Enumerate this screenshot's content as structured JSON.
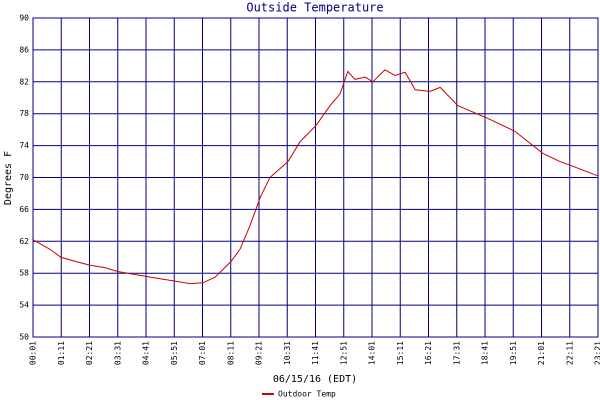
{
  "chart_data": {
    "type": "line",
    "title": "Outside Temperature",
    "x_label": "06/15/16 (EDT)",
    "y_label": "Degrees F",
    "x": [
      1,
      43,
      70,
      105,
      142,
      179,
      212,
      281,
      316,
      353,
      390,
      422,
      452,
      492,
      514,
      539,
      564,
      588,
      633,
      663,
      702,
      737,
      762,
      781,
      799,
      824,
      843,
      873,
      898,
      923,
      948,
      985,
      1010,
      1054,
      1124,
      1195,
      1265,
      1307,
      1334,
      1401
    ],
    "series": [
      {
        "name": "Outdoor Temp",
        "color": "#cc0000",
        "values": [
          62.2,
          61,
          60,
          59.5,
          59,
          58.7,
          58.2,
          57.6,
          57.3,
          57,
          56.7,
          56.8,
          57.5,
          59.5,
          61,
          64,
          67.5,
          70,
          72,
          74.5,
          76.5,
          79,
          80.5,
          83.3,
          82.3,
          82.6,
          82,
          83.5,
          82.8,
          83.2,
          81,
          80.8,
          81.3,
          79,
          77.5,
          75.8,
          73,
          72,
          71.5,
          70.2
        ]
      }
    ],
    "xlim": [
      1,
      1401
    ],
    "xticks": [
      {
        "value": 1,
        "label": "00:01"
      },
      {
        "value": 71,
        "label": "01:11"
      },
      {
        "value": 141,
        "label": "02:21"
      },
      {
        "value": 211,
        "label": "03:31"
      },
      {
        "value": 281,
        "label": "04:41"
      },
      {
        "value": 351,
        "label": "05:51"
      },
      {
        "value": 421,
        "label": "07:01"
      },
      {
        "value": 491,
        "label": "08:11"
      },
      {
        "value": 561,
        "label": "09:21"
      },
      {
        "value": 631,
        "label": "10:31"
      },
      {
        "value": 701,
        "label": "11:41"
      },
      {
        "value": 771,
        "label": "12:51"
      },
      {
        "value": 841,
        "label": "14:01"
      },
      {
        "value": 911,
        "label": "15:11"
      },
      {
        "value": 981,
        "label": "16:21"
      },
      {
        "value": 1051,
        "label": "17:31"
      },
      {
        "value": 1121,
        "label": "18:41"
      },
      {
        "value": 1191,
        "label": "19:51"
      },
      {
        "value": 1261,
        "label": "21:01"
      },
      {
        "value": 1331,
        "label": "22:11"
      },
      {
        "value": 1401,
        "label": "23:21"
      }
    ],
    "ylim": [
      50,
      90
    ],
    "yticks": [
      50,
      54,
      58,
      62,
      66,
      70,
      74,
      78,
      82,
      86,
      90
    ],
    "grid": true,
    "grid_color": "#000080"
  }
}
